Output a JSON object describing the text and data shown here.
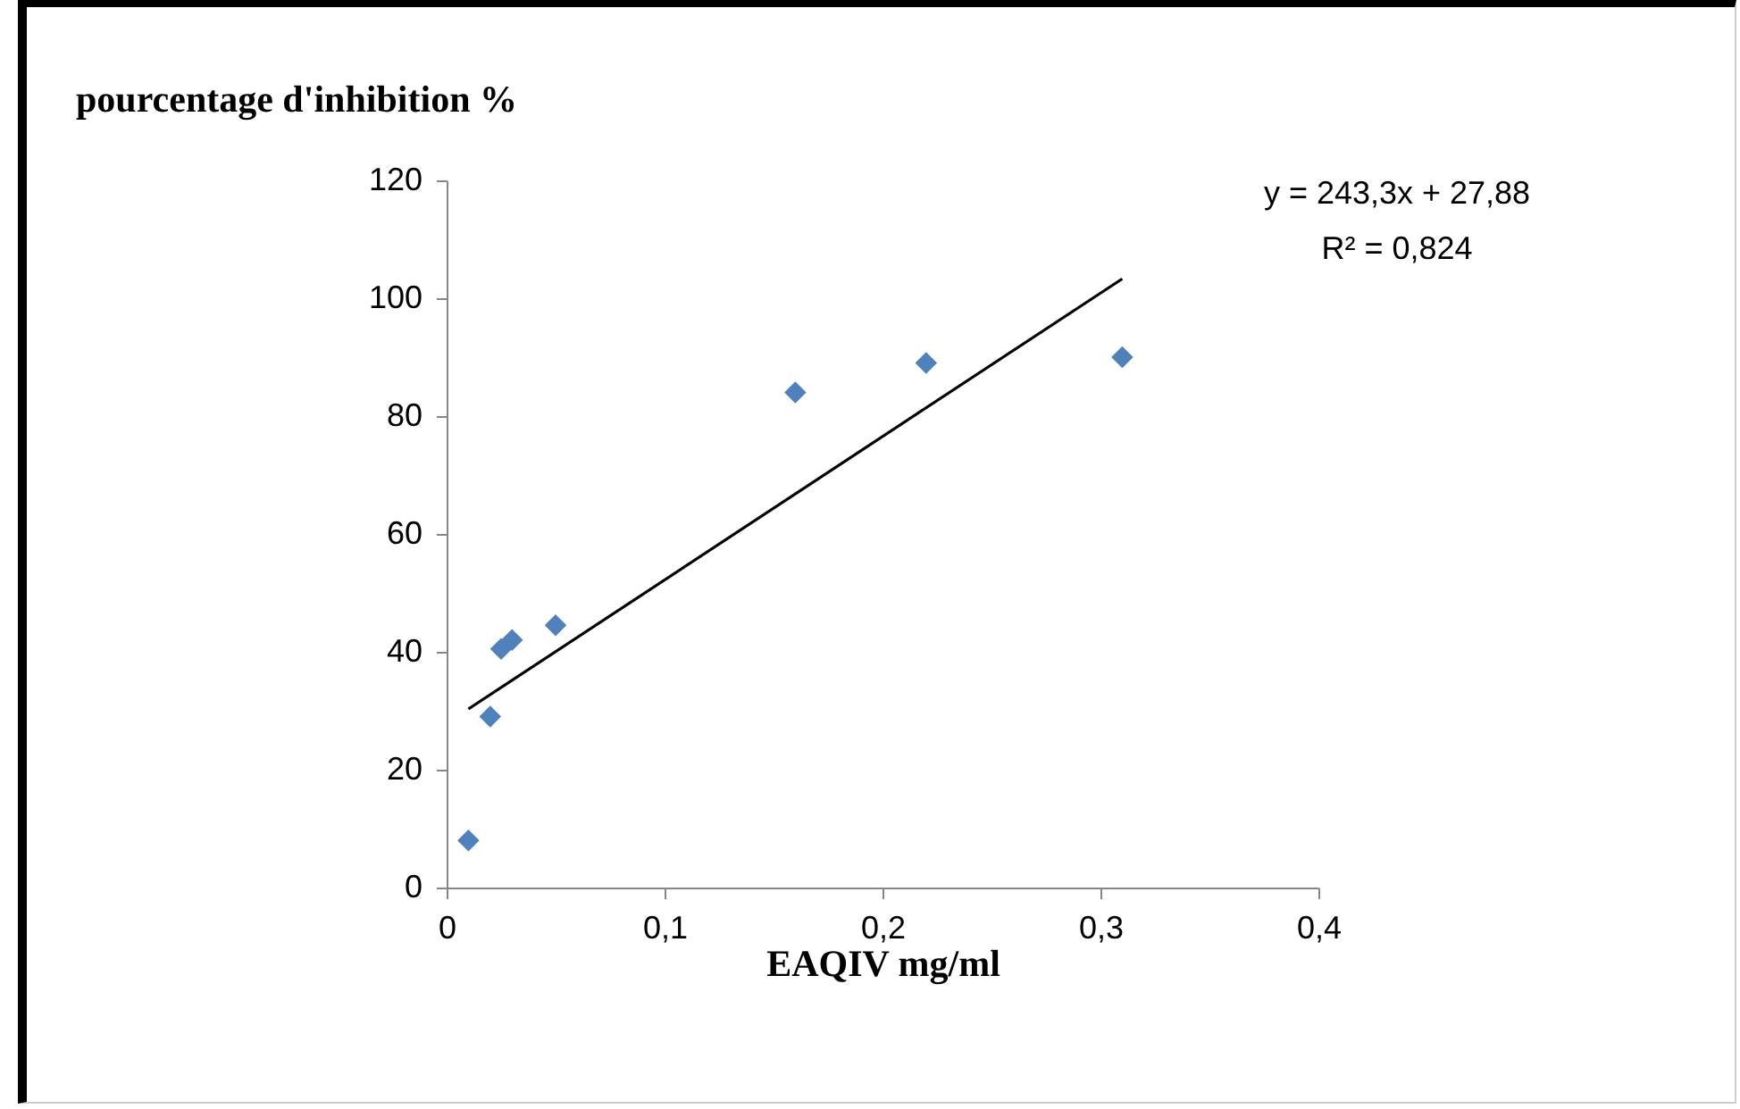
{
  "chart_data": {
    "type": "scatter",
    "xlabel": "EAQIV mg/ml",
    "ylabel": "pourcentage d'inhibition %",
    "annotations": [
      "y = 243,3x + 27,88",
      "R² = 0,824"
    ],
    "series": [
      {
        "color": "#4f81bd",
        "marker": "diamond",
        "x": [
          0.01,
          0.02,
          0.025,
          0.03,
          0.05,
          0.16,
          0.22,
          0.31
        ],
        "values": [
          8,
          29,
          40.5,
          42,
          44.5,
          84,
          89,
          90
        ]
      },
      {
        "type": "line",
        "color": "#000000",
        "marker": "none",
        "line_style": "solid",
        "x": [
          0.01,
          0.31
        ],
        "values": [
          30.3,
          103.3
        ]
      }
    ],
    "xlim": [
      0,
      0.4
    ],
    "ylim": [
      0,
      120
    ],
    "xticks": [
      0,
      {
        "value": 0.1,
        "label": "0,1"
      },
      {
        "value": 0.2,
        "label": "0,2"
      },
      {
        "value": 0.3,
        "label": "0,3"
      },
      {
        "value": 0.4,
        "label": "0,4"
      }
    ],
    "yticks": [
      0,
      20,
      40,
      60,
      80,
      100,
      120
    ],
    "grid": false
  }
}
